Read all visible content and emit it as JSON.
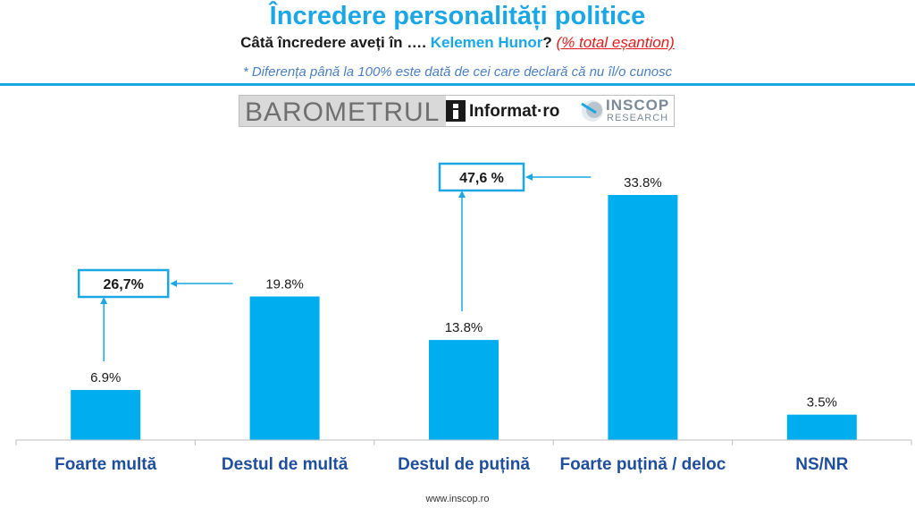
{
  "header": {
    "title": "Încredere personalități politice",
    "subtitle_prefix": "Câtă încredere aveți în ….",
    "subtitle_name": "Kelemen Hunor",
    "subtitle_q": "?",
    "subtitle_sample": "(% total eșantion)",
    "footnote": "* Diferența până la 100% este dată de cei care declară că nu îl/o cunosc"
  },
  "logos": {
    "barometrul": "BAROMETRUL",
    "informat": "Informat·ro",
    "inscop": "INSCOP",
    "inscop_sub": "RESEARCH"
  },
  "chart_data": {
    "type": "bar",
    "categories": [
      "Foarte multă",
      "Destul de multă",
      "Destul de puțină",
      "Foarte puțină / deloc",
      "NS/NR"
    ],
    "values": [
      6.9,
      19.8,
      13.8,
      33.8,
      3.5
    ],
    "value_labels": [
      "6.9%",
      "19.8%",
      "13.8%",
      "33.8%",
      "3.5%"
    ],
    "ylim": [
      0,
      40
    ],
    "grid": false,
    "bar_color": "#00aeef",
    "annotations": [
      {
        "label": "26,7%",
        "value": 26.7,
        "from_category": "Destul de multă",
        "anchor_category": "Foarte multă"
      },
      {
        "label": "47,6 %",
        "value": 47.6,
        "from_category": "Foarte puțină / deloc",
        "anchor_category": "Destul de puțină"
      }
    ]
  },
  "footer": {
    "url": "www.inscop.ro"
  },
  "colors": {
    "accent": "#1aa7e3",
    "bar": "#00aeef",
    "category_label": "#1f4e9c",
    "red": "#e31b1b"
  }
}
